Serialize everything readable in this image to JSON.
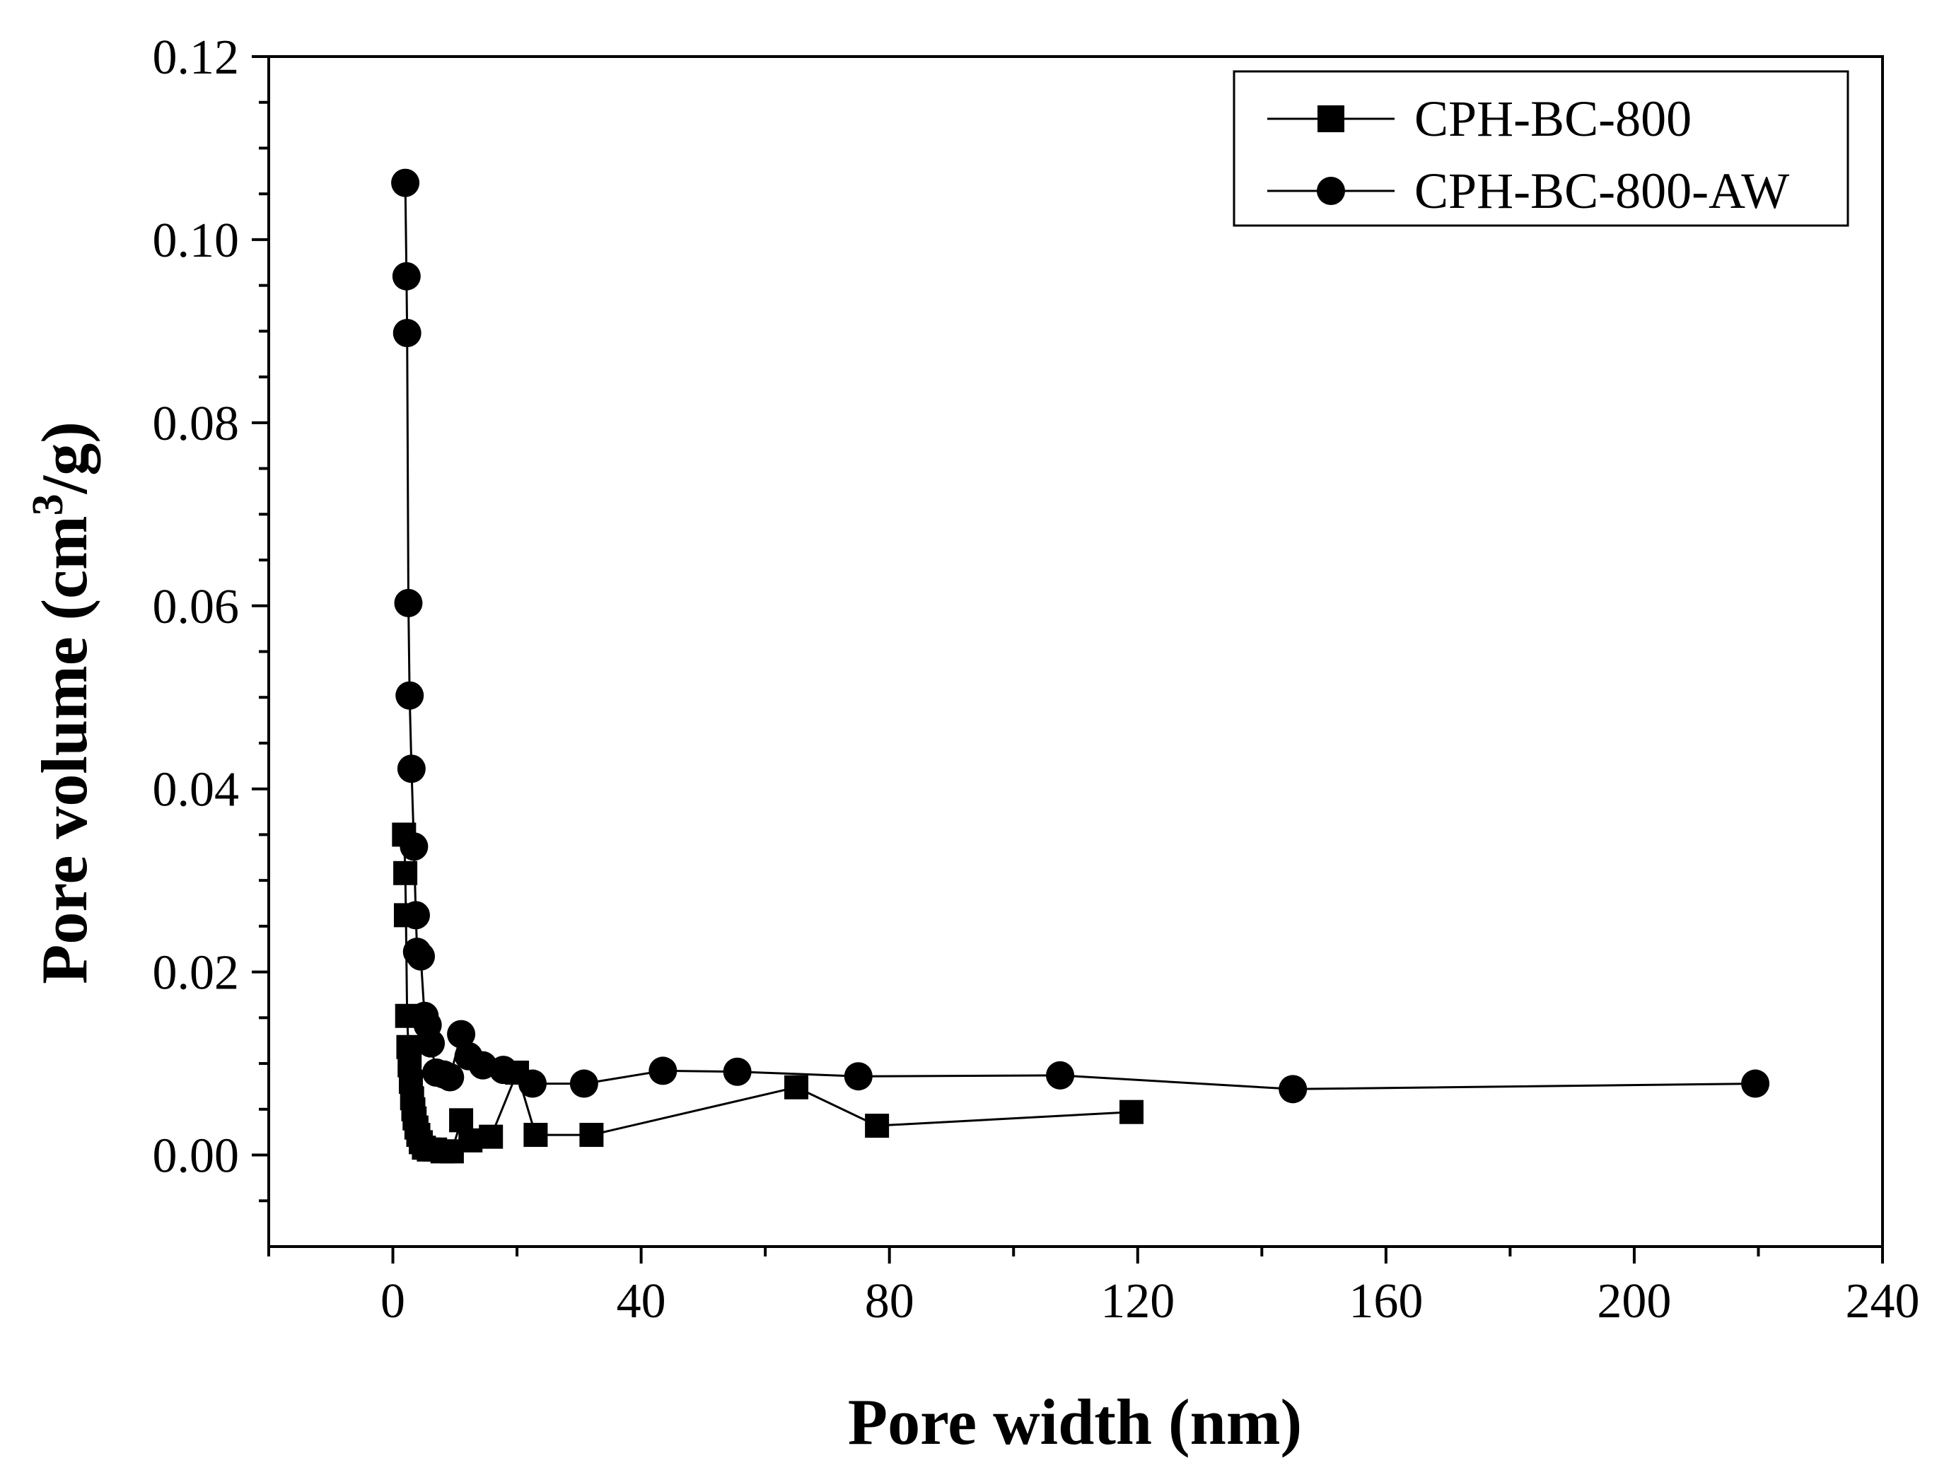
{
  "chart_data": {
    "type": "line",
    "title": "",
    "xlabel": "Pore width (nm)",
    "ylabel_prefix": "Pore volume (cm",
    "ylabel_sup": "3",
    "ylabel_suffix": "/g)",
    "xlim": [
      -20,
      240
    ],
    "ylim": [
      -0.01,
      0.12
    ],
    "x_ticks": [
      0,
      40,
      80,
      120,
      160,
      200,
      240
    ],
    "x_tick_labels": [
      "0",
      "40",
      "80",
      "120",
      "160",
      "200",
      "240"
    ],
    "y_ticks": [
      0.0,
      0.02,
      0.04,
      0.06,
      0.08,
      0.1,
      0.12
    ],
    "y_tick_labels": [
      "0.00",
      "0.02",
      "0.04",
      "0.06",
      "0.08",
      "0.10",
      "0.12"
    ],
    "grid": false,
    "legend_position": "top-right",
    "series": [
      {
        "name": "CPH-BC-800",
        "marker": "square",
        "color": "#000000",
        "x": [
          1.8,
          2.0,
          2.1,
          2.3,
          2.5,
          2.7,
          2.9,
          3.1,
          3.3,
          3.5,
          3.8,
          4.1,
          4.5,
          5.0,
          5.8,
          6.8,
          8.0,
          9.5,
          11.0,
          12.5,
          15.8,
          20.0,
          23.0,
          32.0,
          65.0,
          78.0,
          119.0
        ],
        "y": [
          0.035,
          0.0308,
          0.0262,
          0.0152,
          0.0118,
          0.0098,
          0.008,
          0.0062,
          0.005,
          0.004,
          0.003,
          0.0022,
          0.0014,
          0.0008,
          0.0006,
          0.0006,
          0.0004,
          0.0004,
          0.0038,
          0.0016,
          0.002,
          0.009,
          0.0022,
          0.0022,
          0.0074,
          0.0032,
          0.0047
        ]
      },
      {
        "name": "CPH-BC-800-AW",
        "marker": "circle",
        "color": "#000000",
        "x": [
          2.0,
          2.2,
          2.3,
          2.5,
          2.7,
          3.0,
          3.4,
          3.7,
          3.9,
          4.5,
          5.1,
          5.6,
          6.1,
          7.0,
          8.2,
          9.2,
          11.0,
          12.2,
          14.5,
          17.8,
          22.5,
          30.8,
          43.5,
          55.5,
          75.0,
          107.5,
          145.0,
          219.5
        ],
        "y": [
          0.1062,
          0.096,
          0.0898,
          0.0603,
          0.0502,
          0.0422,
          0.0337,
          0.0262,
          0.0222,
          0.0217,
          0.0152,
          0.0142,
          0.0122,
          0.009,
          0.0088,
          0.0085,
          0.0132,
          0.0108,
          0.0098,
          0.0093,
          0.0078,
          0.0078,
          0.0092,
          0.0091,
          0.0086,
          0.0087,
          0.0072,
          0.0078
        ]
      }
    ]
  }
}
